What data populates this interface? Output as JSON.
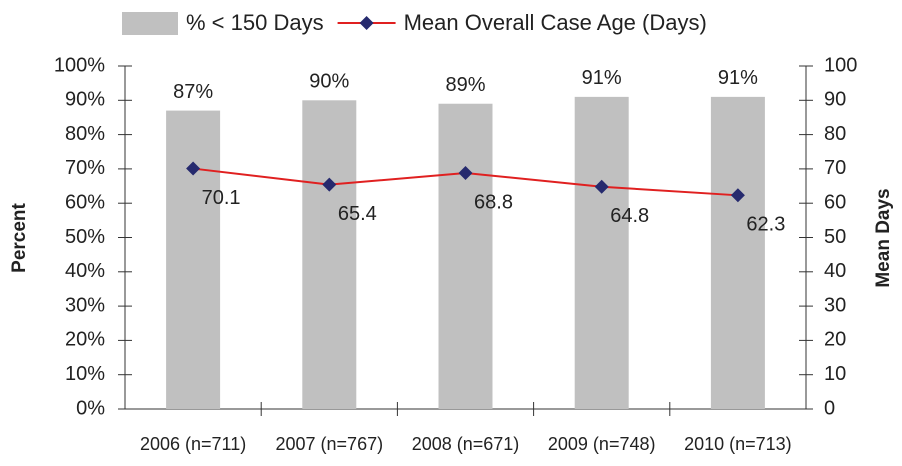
{
  "chart_data": {
    "type": "bar_line",
    "categories": [
      "2006 (n=711)",
      "2007 (n=767)",
      "2008 (n=671)",
      "2009 (n=748)",
      "2010 (n=713)"
    ],
    "series": [
      {
        "name": "% < 150 Days",
        "type": "bar",
        "color": "#c0c0c0",
        "axis": "y",
        "values": [
          87,
          90,
          89,
          91,
          91
        ],
        "value_labels": [
          "87%",
          "90%",
          "89%",
          "91%",
          "91%"
        ]
      },
      {
        "name": "Mean Overall Case Age (Days)",
        "type": "line",
        "color": "#e02020",
        "marker_color": "#262a6e",
        "axis": "y2",
        "values": [
          70.1,
          65.4,
          68.8,
          64.8,
          62.3
        ]
      }
    ],
    "ylabel": "Percent",
    "y2label": "Mean  Days",
    "ylim": [
      0,
      100
    ],
    "yticks": [
      {
        "value": 0,
        "label": "0%"
      },
      {
        "value": 10,
        "label": "10%"
      },
      {
        "value": 20,
        "label": "20%"
      },
      {
        "value": 30,
        "label": "30%"
      },
      {
        "value": 40,
        "label": "40%"
      },
      {
        "value": 50,
        "label": "50%"
      },
      {
        "value": 60,
        "label": "60%"
      },
      {
        "value": 70,
        "label": "70%"
      },
      {
        "value": 80,
        "label": "80%"
      },
      {
        "value": 90,
        "label": "90%"
      },
      {
        "value": 100,
        "label": "100%"
      }
    ],
    "y2lim": [
      0,
      100
    ],
    "y2ticks": [
      0,
      10,
      20,
      30,
      40,
      50,
      60,
      70,
      80,
      90,
      100
    ],
    "legend": "top"
  }
}
